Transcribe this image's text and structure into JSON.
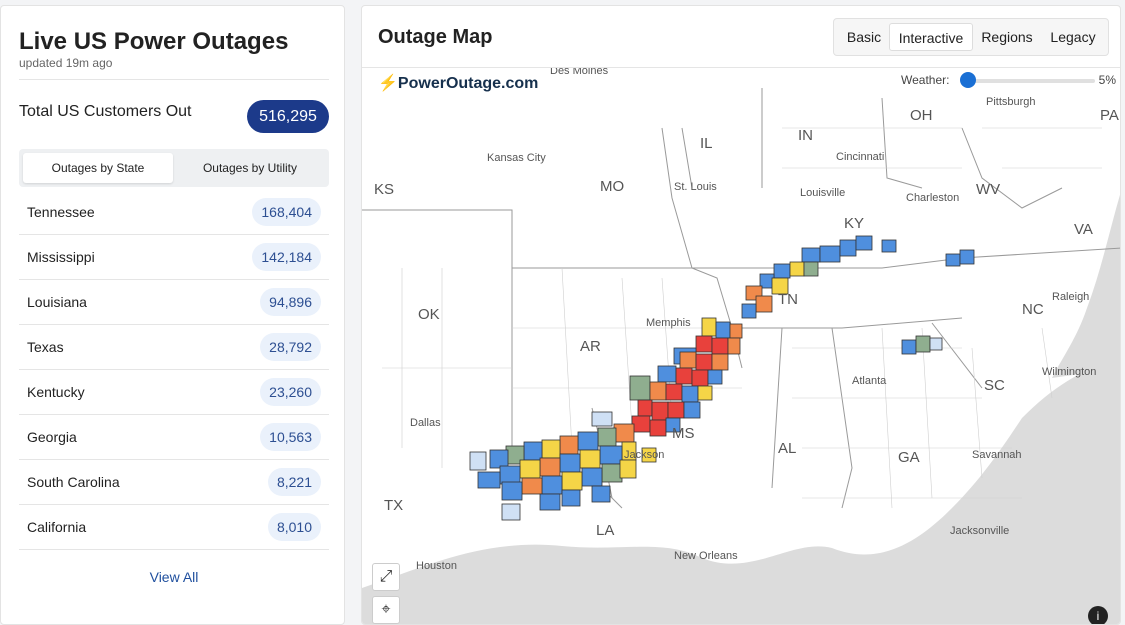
{
  "sidebar": {
    "title": "Live US Power Outages",
    "updated": "updated 19m ago",
    "total_label": "Total US Customers Out",
    "total_value": "516,295",
    "tabs": [
      "Outages by State",
      "Outages by Utility"
    ],
    "states": [
      {
        "name": "Tennessee",
        "count": "168,404"
      },
      {
        "name": "Mississippi",
        "count": "142,184"
      },
      {
        "name": "Louisiana",
        "count": "94,896"
      },
      {
        "name": "Texas",
        "count": "28,792"
      },
      {
        "name": "Kentucky",
        "count": "23,260"
      },
      {
        "name": "Georgia",
        "count": "10,563"
      },
      {
        "name": "South Carolina",
        "count": "8,221"
      },
      {
        "name": "California",
        "count": "8,010"
      }
    ],
    "view_all": "View All"
  },
  "map": {
    "title": "Outage Map",
    "modes": [
      "Basic",
      "Interactive",
      "Regions",
      "Legacy"
    ],
    "active_mode": "Interactive",
    "weather_label": "Weather:",
    "weather_value": "5%",
    "weather_level": 0.05,
    "logo": "PowerOutage.com",
    "state_labels": [
      "KS",
      "MO",
      "IL",
      "IN",
      "OH",
      "WV",
      "VA",
      "KY",
      "TN",
      "NC",
      "OK",
      "AR",
      "SC",
      "MS",
      "AL",
      "GA",
      "TX",
      "LA",
      "PA"
    ],
    "city_labels": [
      "Kansas City",
      "St. Louis",
      "Cincinnati",
      "Pittsburgh",
      "Louisville",
      "Charleston",
      "Raleigh",
      "Memphis",
      "Atlanta",
      "Wilmington",
      "Dallas",
      "Jackson",
      "Savannah",
      "Houston",
      "New Orleans",
      "Jacksonville",
      "Des Moines"
    ],
    "colors": {
      "high": "#e8413c",
      "medium": "#f08a4b",
      "low": "#f5d547",
      "minimal": "#4f8fde",
      "state": "#8fae8f"
    },
    "icons": [
      "expand-icon",
      "locate-icon",
      "info-icon",
      "bolt-icon"
    ]
  }
}
